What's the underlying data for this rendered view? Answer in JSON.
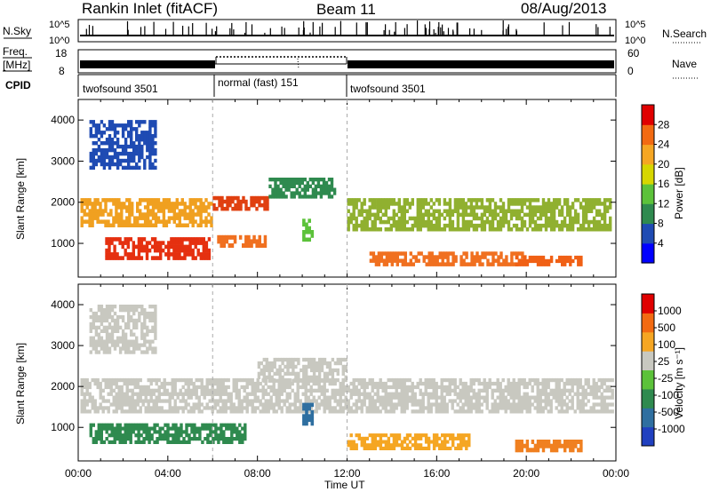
{
  "header": {
    "station": "Rankin Inlet (fitACF)",
    "beam": "Beam 11",
    "date": "08/Aug/2013"
  },
  "status_strip": {
    "nsky_label": "N.Sky",
    "nsearch_label": "N.Search",
    "noise_ticks_left": [
      "10^5",
      "10^0"
    ],
    "noise_ticks_right": [
      "10^5",
      "10^0"
    ],
    "freq_label_1": "Freq.",
    "freq_label_2": "[MHz]",
    "freq_ticks": [
      "18",
      "8"
    ],
    "nave_label": "Nave",
    "nave_ticks": [
      "60",
      "0"
    ],
    "cpid_label": "CPID",
    "cpid_segments": [
      {
        "start": 0,
        "end": 6,
        "name": "twofsound 3501"
      },
      {
        "start": 6,
        "end": 12,
        "name": "normal (fast) 151"
      },
      {
        "start": 12,
        "end": 24,
        "name": "twofsound 3501"
      }
    ]
  },
  "chart_data": [
    {
      "type": "heatmap",
      "name": "power",
      "ylabel": "Slant Range [km]",
      "xlim": [
        0,
        24
      ],
      "ylim": [
        180,
        4500
      ],
      "yticks": [
        "1000",
        "2000",
        "3000",
        "4000"
      ],
      "colorbar_label": "Power [dB]",
      "colorbar_ticks": [
        "28",
        "24",
        "20",
        "16",
        "12",
        "8",
        "4"
      ],
      "colorbar_colors": [
        "#0000ff",
        "#1f4bb3",
        "#2f8a4f",
        "#5cc23a",
        "#d6d600",
        "#f5a623",
        "#f26a12",
        "#e00000"
      ],
      "echo_regions": [
        {
          "t0": 0.1,
          "t1": 6.0,
          "r0": 1400,
          "r1": 2100,
          "color": "#f0a020"
        },
        {
          "t0": 1.2,
          "t1": 5.9,
          "r0": 600,
          "r1": 1150,
          "color": "#e53010"
        },
        {
          "t0": 6.0,
          "t1": 8.5,
          "r0": 1800,
          "r1": 2150,
          "color": "#e04010"
        },
        {
          "t0": 6.2,
          "t1": 8.4,
          "r0": 900,
          "r1": 1200,
          "color": "#f07020"
        },
        {
          "t0": 8.5,
          "t1": 11.5,
          "r0": 2100,
          "r1": 2600,
          "color": "#2f8a4f"
        },
        {
          "t0": 12.0,
          "t1": 23.8,
          "r0": 1300,
          "r1": 2100,
          "color": "#90b030"
        },
        {
          "t0": 13.0,
          "t1": 20.0,
          "r0": 450,
          "r1": 800,
          "color": "#f07020"
        },
        {
          "t0": 19.5,
          "t1": 22.5,
          "r0": 450,
          "r1": 700,
          "color": "#f06015"
        },
        {
          "t0": 0.5,
          "t1": 3.5,
          "r0": 2800,
          "r1": 4000,
          "color": "#1f4bb3"
        },
        {
          "t0": 10.0,
          "t1": 10.5,
          "r0": 1050,
          "r1": 1600,
          "color": "#5cc23a"
        }
      ]
    },
    {
      "type": "heatmap",
      "name": "velocity",
      "xlabel": "Time UT",
      "ylabel": "Slant Range [km]",
      "xlim": [
        0,
        24
      ],
      "ylim": [
        180,
        4500
      ],
      "xticks": [
        "00:00",
        "04:00",
        "08:00",
        "12:00",
        "16:00",
        "20:00",
        "00:00"
      ],
      "yticks": [
        "1000",
        "2000",
        "3000",
        "4000"
      ],
      "colorbar_label": "Velocity [m s⁻¹]",
      "colorbar_ticks": [
        "1000",
        "500",
        "100",
        "25",
        "-25",
        "-100",
        "-500",
        "-1000"
      ],
      "colorbar_colors": [
        "#2040c0",
        "#2f6fa0",
        "#2f8a4f",
        "#5cc23a",
        "#c8c8c0",
        "#f5a623",
        "#f26a12",
        "#e00000"
      ],
      "echo_regions": [
        {
          "t0": 0.1,
          "t1": 23.9,
          "r0": 1350,
          "r1": 2200,
          "color": "#c8c8c0"
        },
        {
          "t0": 8.0,
          "t1": 12.0,
          "r0": 2100,
          "r1": 2700,
          "color": "#c8c8c0"
        },
        {
          "t0": 0.5,
          "t1": 7.5,
          "r0": 600,
          "r1": 1100,
          "color": "#2f8a4f"
        },
        {
          "t0": 12.0,
          "t1": 17.5,
          "r0": 450,
          "r1": 850,
          "color": "#f5a623"
        },
        {
          "t0": 19.5,
          "t1": 22.5,
          "r0": 400,
          "r1": 700,
          "color": "#f08020"
        },
        {
          "t0": 10.0,
          "t1": 10.5,
          "r0": 1050,
          "r1": 1600,
          "color": "#2f6fa0"
        },
        {
          "t0": 0.5,
          "t1": 3.5,
          "r0": 2800,
          "r1": 4000,
          "color": "#c8c8c0"
        }
      ]
    }
  ]
}
